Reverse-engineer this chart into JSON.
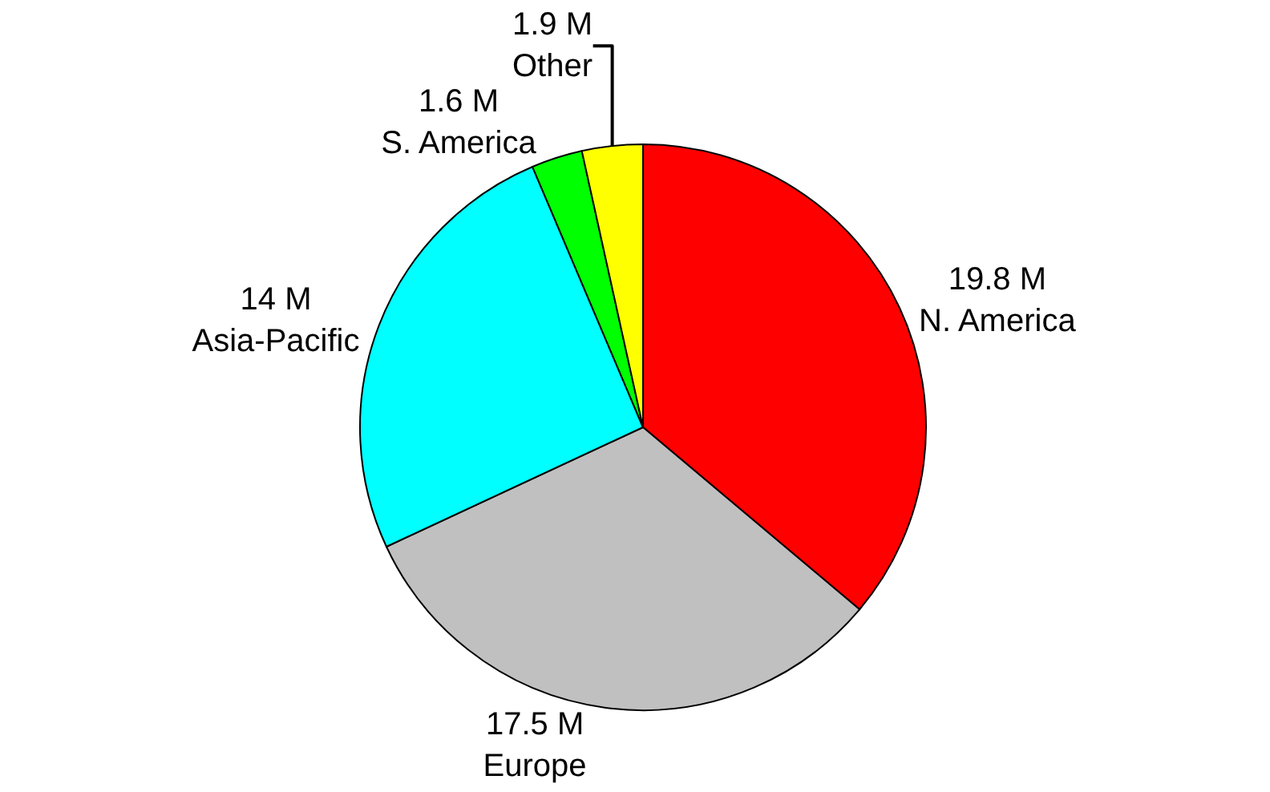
{
  "chart_data": {
    "type": "pie",
    "categories": [
      "N. America",
      "Europe",
      "Asia-Pacific",
      "S. America",
      "Other"
    ],
    "values": [
      19.8,
      17.5,
      14,
      1.6,
      1.9
    ],
    "value_labels": [
      "19.8 M",
      "17.5 M",
      "14 M",
      "1.6 M",
      "1.9 M"
    ],
    "colors": [
      "#ff0000",
      "#c0c0c0",
      "#00ffff",
      "#00ff00",
      "#ffff00"
    ],
    "legend": false
  }
}
